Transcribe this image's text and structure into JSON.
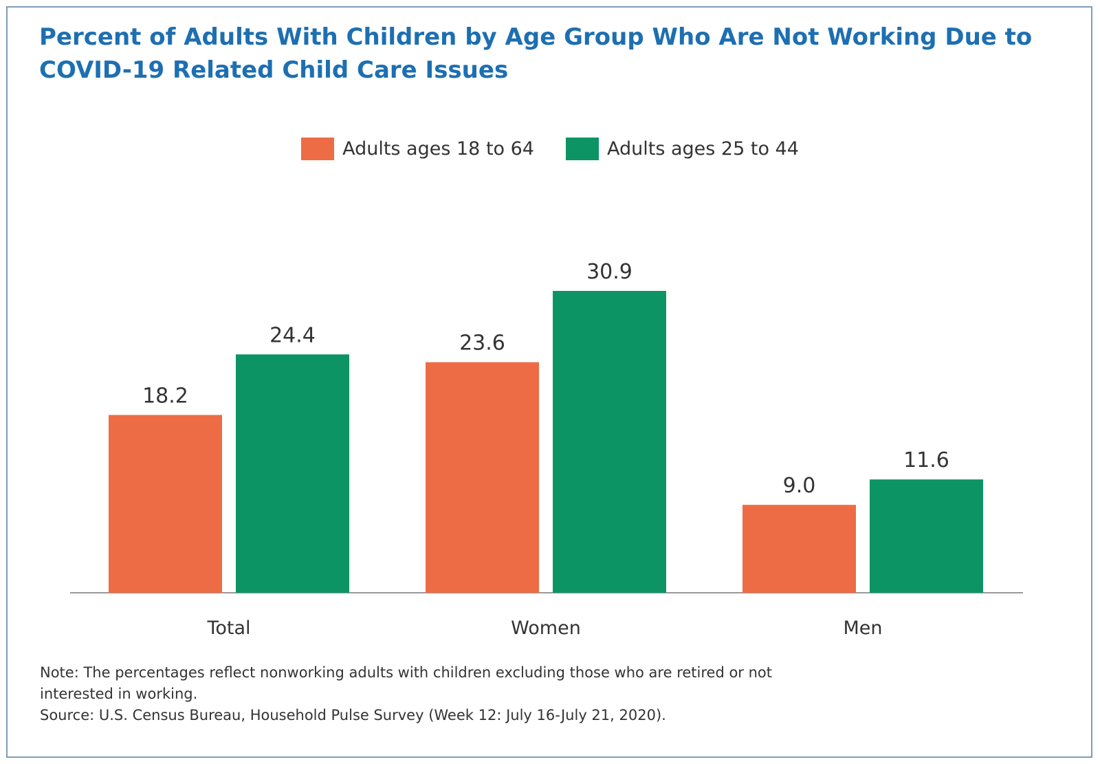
{
  "chart_data": {
    "type": "bar",
    "title": "Percent of Adults With Children by Age Group Who Are Not Working Due to COVID-19 Related Child Care Issues",
    "categories": [
      "Total",
      "Women",
      "Men"
    ],
    "series": [
      {
        "name": "Adults ages 18 to 64",
        "color": "#ee6c45",
        "values": [
          18.2,
          23.6,
          9.0
        ],
        "labels": [
          "18.2",
          "23.6",
          "9.0"
        ]
      },
      {
        "name": "Adults ages 25 to 44",
        "color": "#0d9464",
        "values": [
          24.4,
          30.9,
          11.6
        ],
        "labels": [
          "24.4",
          "30.9",
          "11.6"
        ]
      }
    ],
    "xlabel": "",
    "ylabel": "",
    "ylim": [
      0,
      30.9
    ],
    "grid": false,
    "legend": "top-center"
  },
  "notes": {
    "note_line1": "Note: The percentages reflect nonworking adults with children excluding those who are retired or not",
    "note_line2": "interested in working.",
    "source": "Source: U.S. Census Bureau, Household Pulse Survey (Week 12: July 16-July 21, 2020)."
  },
  "colors": {
    "title": "#1d6fb2",
    "axis": "#999999",
    "text": "#333333"
  }
}
